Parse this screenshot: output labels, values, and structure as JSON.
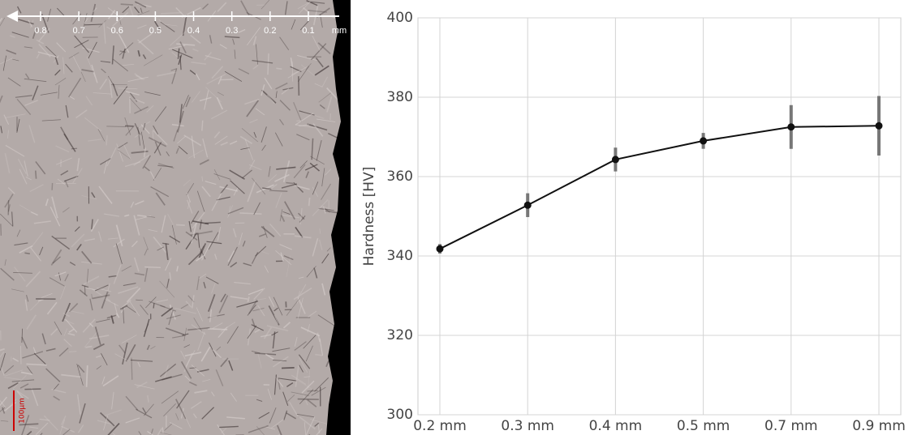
{
  "micrograph": {
    "scale_ticks": [
      0.8,
      0.7,
      0.6,
      0.5,
      0.4,
      0.3,
      0.2,
      0.1
    ],
    "scale_unit": "mm",
    "scale_bar": "100µm"
  },
  "chart_data": {
    "type": "line",
    "ylabel": "Hardness [HV]",
    "categories": [
      "0.2 mm",
      "0.3 mm",
      "0.4 mm",
      "0.5 mm",
      "0.7 mm",
      "0.9 mm"
    ],
    "values": [
      341.8,
      352.8,
      364.3,
      369.0,
      372.5,
      372.8
    ],
    "errors": [
      1.2,
      3.0,
      3.0,
      2.0,
      5.5,
      7.5
    ],
    "color": "#111111",
    "error_color": "#777777",
    "ylim": [
      300,
      400
    ],
    "yticks": [
      300,
      320,
      340,
      360,
      380,
      400
    ],
    "grid": true
  }
}
